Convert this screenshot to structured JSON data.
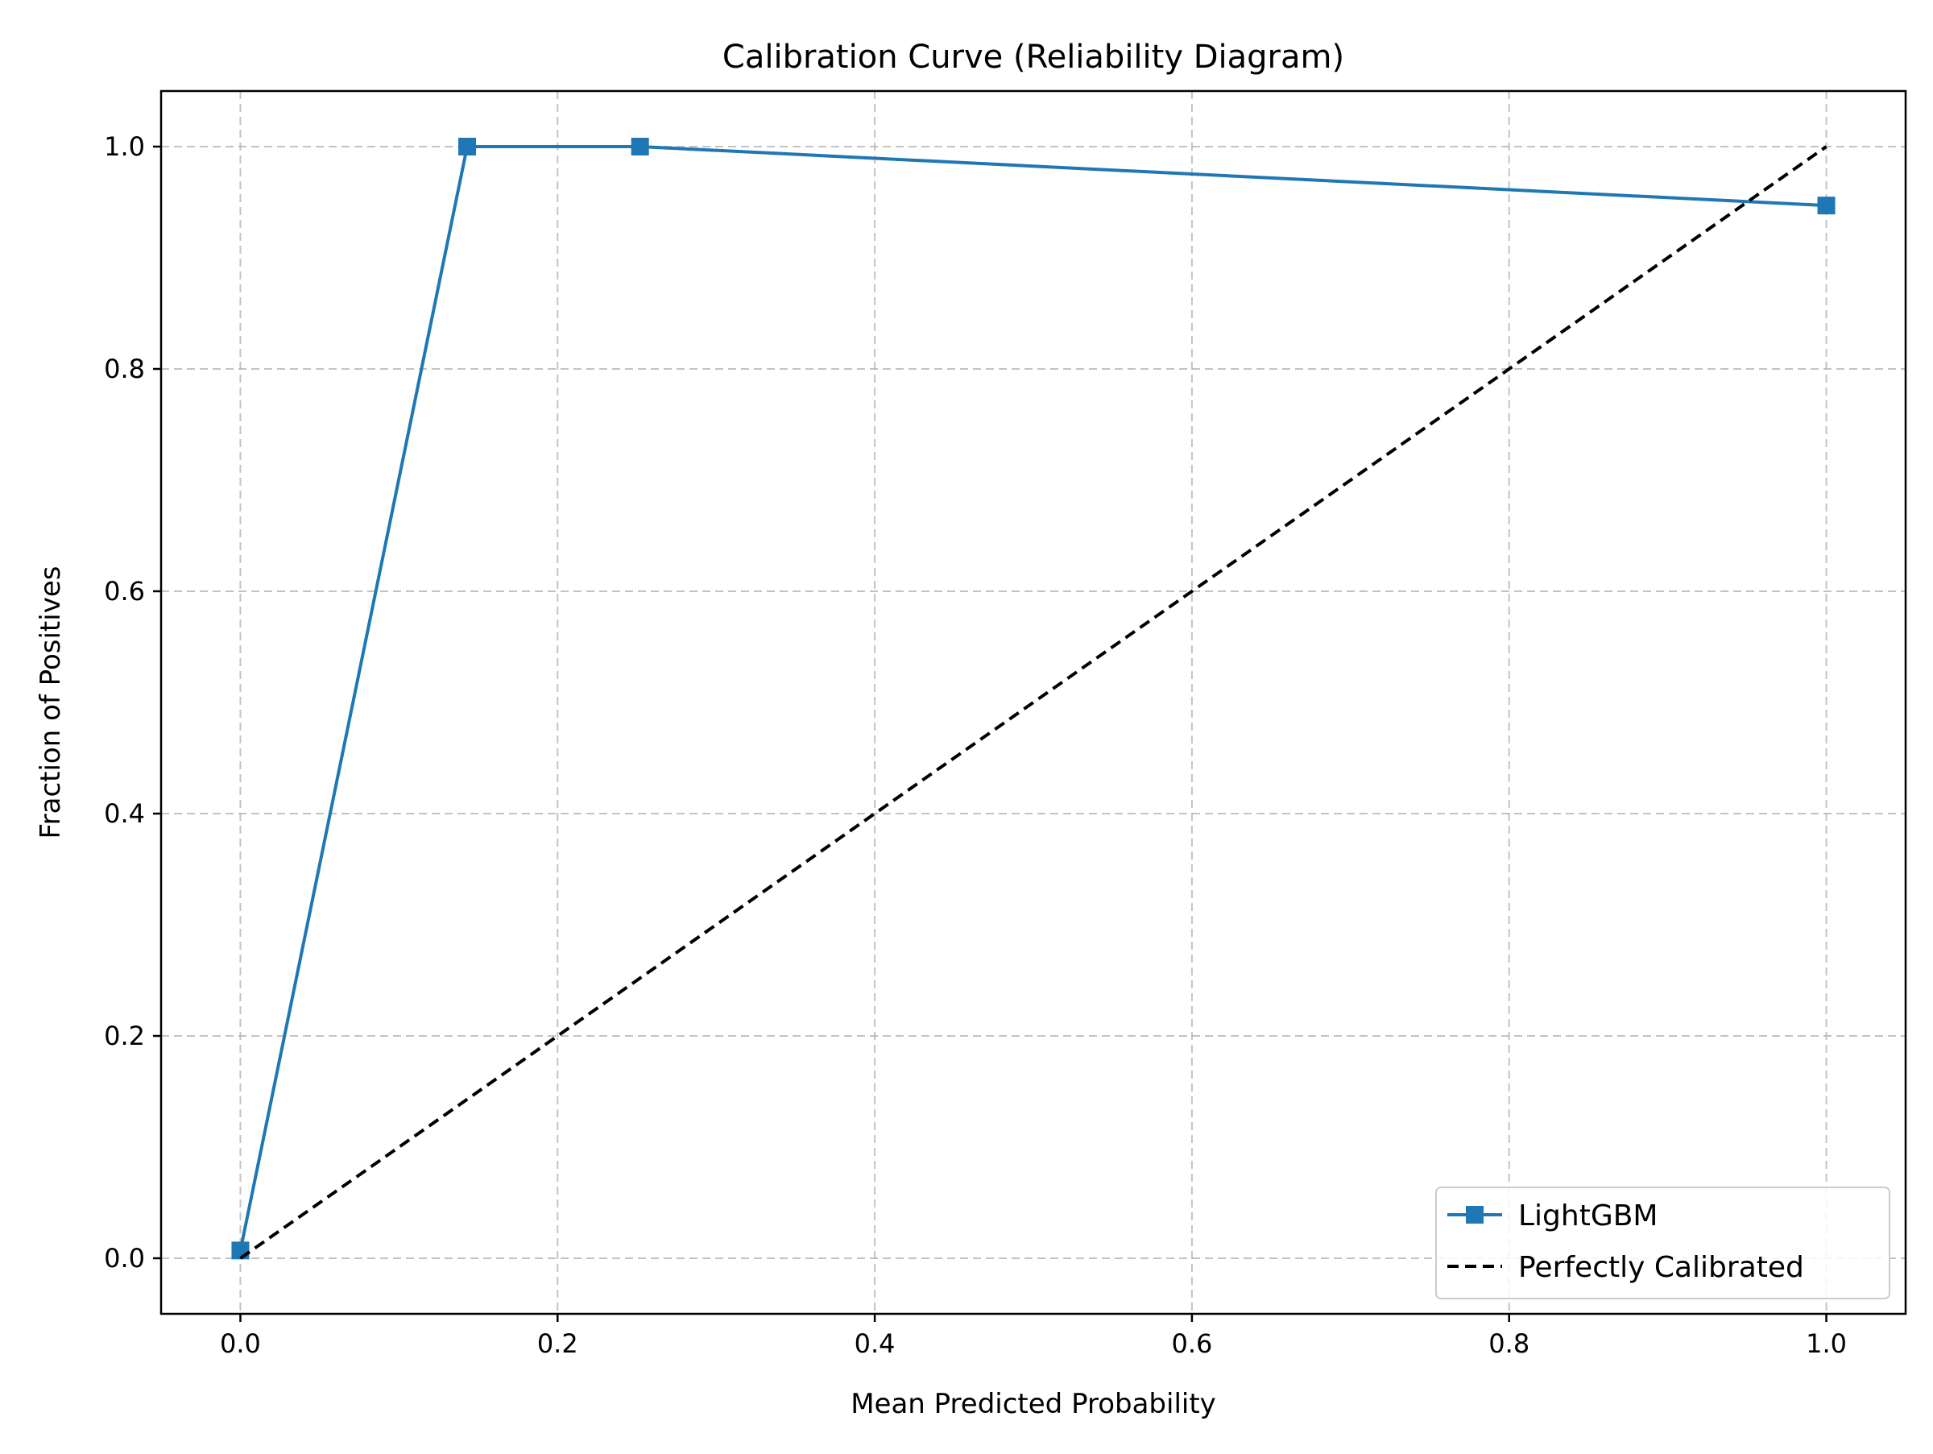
{
  "chart_data": {
    "type": "line",
    "title": "Calibration Curve (Reliability Diagram)",
    "xlabel": "Mean Predicted Probability",
    "ylabel": "Fraction of Positives",
    "xlim": [
      -0.05,
      1.05
    ],
    "ylim": [
      -0.05,
      1.05
    ],
    "xticks": [
      0.0,
      0.2,
      0.4,
      0.6,
      0.8,
      1.0
    ],
    "xtick_labels": [
      "0.0",
      "0.2",
      "0.4",
      "0.6",
      "0.8",
      "1.0"
    ],
    "yticks": [
      0.0,
      0.2,
      0.4,
      0.6,
      0.8,
      1.0
    ],
    "ytick_labels": [
      "0.0",
      "0.2",
      "0.4",
      "0.6",
      "0.8",
      "1.0"
    ],
    "grid": true,
    "legend_position": "lower-right",
    "series": [
      {
        "name": "LightGBM",
        "color": "#1f77b4",
        "marker": "square",
        "line_style": "solid",
        "x": [
          0.0,
          0.143,
          0.252,
          1.0
        ],
        "y": [
          0.007,
          1.0,
          1.0,
          0.947
        ]
      },
      {
        "name": "Perfectly Calibrated",
        "color": "#000000",
        "marker": "none",
        "line_style": "dashed",
        "x": [
          0.0,
          1.0
        ],
        "y": [
          0.0,
          1.0
        ]
      }
    ]
  }
}
